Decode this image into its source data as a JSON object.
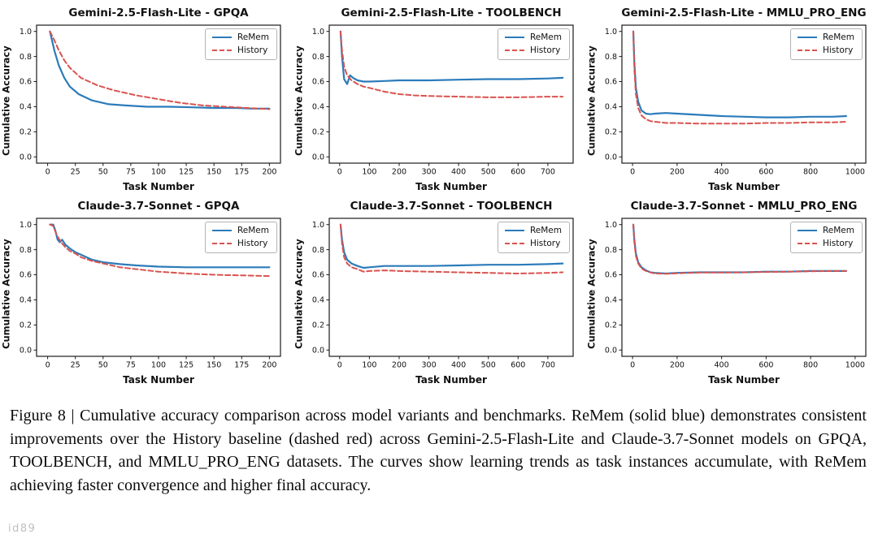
{
  "colors": {
    "remem": "#2b7bba",
    "history": "#d9534f"
  },
  "watermark": "id89",
  "caption": "Figure 8 | Cumulative accuracy comparison across model variants and benchmarks. ReMem (solid blue) demonstrates consistent improvements over the History baseline (dashed red) across Gemini-2.5-Flash-Lite and Claude-3.7-Sonnet models on GPQA, TOOLBENCH, and MMLU_PRO_ENG datasets. The curves show learning trends as task instances accumulate, with ReMem achieving faster convergence and higher final accuracy.",
  "chart_data": [
    {
      "type": "line",
      "title": "Gemini-2.5-Flash-Lite - GPQA",
      "xlabel": "Task Number",
      "ylabel": "Cumulative Accuracy",
      "xlim": [
        -10,
        210
      ],
      "ylim": [
        -0.05,
        1.05
      ],
      "xticks": [
        0,
        25,
        50,
        75,
        100,
        125,
        150,
        175,
        200
      ],
      "yticks": [
        0,
        0.2,
        0.4,
        0.6,
        0.8,
        1.0
      ],
      "grid": false,
      "legend_position": "upper right",
      "series": [
        {
          "name": "ReMem",
          "style": "solid",
          "x": [
            2,
            6,
            10,
            15,
            20,
            28,
            40,
            55,
            70,
            90,
            110,
            130,
            150,
            170,
            185,
            200
          ],
          "values": [
            1.0,
            0.85,
            0.73,
            0.63,
            0.56,
            0.5,
            0.45,
            0.42,
            0.41,
            0.4,
            0.4,
            0.395,
            0.39,
            0.39,
            0.385,
            0.385
          ]
        },
        {
          "name": "History",
          "style": "dashed",
          "x": [
            2,
            6,
            10,
            15,
            20,
            30,
            45,
            60,
            80,
            100,
            120,
            140,
            160,
            180,
            200
          ],
          "values": [
            1.0,
            0.93,
            0.85,
            0.77,
            0.71,
            0.63,
            0.57,
            0.53,
            0.49,
            0.46,
            0.43,
            0.41,
            0.4,
            0.39,
            0.38
          ]
        }
      ]
    },
    {
      "type": "line",
      "title": "Gemini-2.5-Flash-Lite - TOOLBENCH",
      "xlabel": "Task Number",
      "ylabel": "Cumulative Accuracy",
      "xlim": [
        -35,
        785
      ],
      "ylim": [
        -0.05,
        1.05
      ],
      "xticks": [
        0,
        100,
        200,
        300,
        400,
        500,
        600,
        700
      ],
      "yticks": [
        0,
        0.2,
        0.4,
        0.6,
        0.8,
        1.0
      ],
      "grid": false,
      "legend_position": "upper right",
      "series": [
        {
          "name": "ReMem",
          "style": "solid",
          "x": [
            3,
            8,
            15,
            25,
            35,
            45,
            60,
            80,
            100,
            150,
            200,
            300,
            400,
            500,
            600,
            700,
            750
          ],
          "values": [
            1.0,
            0.8,
            0.62,
            0.58,
            0.65,
            0.63,
            0.61,
            0.6,
            0.6,
            0.605,
            0.61,
            0.61,
            0.615,
            0.62,
            0.62,
            0.625,
            0.63
          ]
        },
        {
          "name": "History",
          "style": "dashed",
          "x": [
            3,
            8,
            15,
            25,
            40,
            60,
            80,
            100,
            150,
            200,
            250,
            300,
            400,
            500,
            600,
            700,
            750
          ],
          "values": [
            1.0,
            0.85,
            0.72,
            0.65,
            0.61,
            0.58,
            0.56,
            0.55,
            0.52,
            0.5,
            0.49,
            0.485,
            0.48,
            0.475,
            0.475,
            0.48,
            0.48
          ]
        }
      ]
    },
    {
      "type": "line",
      "title": "Gemini-2.5-Flash-Lite - MMLU_PRO_ENG",
      "xlabel": "Task Number",
      "ylabel": "Cumulative Accuracy",
      "xlim": [
        -48,
        1048
      ],
      "ylim": [
        -0.05,
        1.05
      ],
      "xticks": [
        0,
        200,
        400,
        600,
        800,
        1000
      ],
      "yticks": [
        0,
        0.2,
        0.4,
        0.6,
        0.8,
        1.0
      ],
      "grid": false,
      "legend_position": "upper right",
      "series": [
        {
          "name": "ReMem",
          "style": "solid",
          "x": [
            3,
            8,
            15,
            25,
            40,
            60,
            80,
            100,
            150,
            200,
            300,
            400,
            500,
            600,
            700,
            800,
            900,
            960
          ],
          "values": [
            1.0,
            0.75,
            0.55,
            0.44,
            0.37,
            0.345,
            0.34,
            0.345,
            0.35,
            0.345,
            0.335,
            0.325,
            0.32,
            0.315,
            0.315,
            0.32,
            0.32,
            0.325
          ]
        },
        {
          "name": "History",
          "style": "dashed",
          "x": [
            3,
            8,
            15,
            25,
            40,
            60,
            80,
            100,
            150,
            200,
            300,
            400,
            500,
            600,
            700,
            800,
            900,
            960
          ],
          "values": [
            1.0,
            0.7,
            0.5,
            0.39,
            0.33,
            0.3,
            0.285,
            0.28,
            0.27,
            0.27,
            0.265,
            0.265,
            0.265,
            0.27,
            0.27,
            0.275,
            0.275,
            0.28
          ]
        }
      ]
    },
    {
      "type": "line",
      "title": "Claude-3.7-Sonnet - GPQA",
      "xlabel": "Task Number",
      "ylabel": "Cumulative Accuracy",
      "xlim": [
        -10,
        210
      ],
      "ylim": [
        -0.05,
        1.05
      ],
      "xticks": [
        0,
        25,
        50,
        75,
        100,
        125,
        150,
        175,
        200
      ],
      "yticks": [
        0,
        0.2,
        0.4,
        0.6,
        0.8,
        1.0
      ],
      "grid": false,
      "legend_position": "upper right",
      "series": [
        {
          "name": "ReMem",
          "style": "solid",
          "x": [
            2,
            5,
            7,
            9,
            11,
            13,
            16,
            20,
            25,
            30,
            40,
            50,
            65,
            80,
            100,
            125,
            150,
            175,
            200
          ],
          "values": [
            1.0,
            1.0,
            0.95,
            0.88,
            0.86,
            0.88,
            0.84,
            0.81,
            0.78,
            0.76,
            0.72,
            0.7,
            0.685,
            0.675,
            0.665,
            0.66,
            0.66,
            0.66,
            0.66
          ]
        },
        {
          "name": "History",
          "style": "dashed",
          "x": [
            2,
            5,
            8,
            12,
            16,
            20,
            25,
            30,
            40,
            50,
            65,
            80,
            100,
            125,
            150,
            175,
            200
          ],
          "values": [
            1.0,
            0.99,
            0.92,
            0.86,
            0.82,
            0.79,
            0.77,
            0.74,
            0.71,
            0.69,
            0.66,
            0.645,
            0.625,
            0.61,
            0.6,
            0.595,
            0.59
          ]
        }
      ]
    },
    {
      "type": "line",
      "title": "Claude-3.7-Sonnet - TOOLBENCH",
      "xlabel": "Task Number",
      "ylabel": "Cumulative Accuracy",
      "xlim": [
        -35,
        785
      ],
      "ylim": [
        -0.05,
        1.05
      ],
      "xticks": [
        0,
        100,
        200,
        300,
        400,
        500,
        600,
        700
      ],
      "yticks": [
        0,
        0.2,
        0.4,
        0.6,
        0.8,
        1.0
      ],
      "grid": false,
      "legend_position": "upper right",
      "series": [
        {
          "name": "ReMem",
          "style": "solid",
          "x": [
            3,
            8,
            15,
            25,
            40,
            60,
            80,
            100,
            150,
            200,
            300,
            400,
            500,
            600,
            700,
            750
          ],
          "values": [
            1.0,
            0.88,
            0.78,
            0.72,
            0.69,
            0.67,
            0.655,
            0.66,
            0.67,
            0.67,
            0.67,
            0.675,
            0.68,
            0.68,
            0.685,
            0.69
          ]
        },
        {
          "name": "History",
          "style": "dashed",
          "x": [
            3,
            8,
            15,
            25,
            40,
            60,
            80,
            100,
            150,
            200,
            300,
            400,
            500,
            600,
            700,
            750
          ],
          "values": [
            1.0,
            0.85,
            0.74,
            0.69,
            0.66,
            0.645,
            0.625,
            0.63,
            0.635,
            0.63,
            0.625,
            0.62,
            0.615,
            0.61,
            0.615,
            0.62
          ]
        }
      ]
    },
    {
      "type": "line",
      "title": "Claude-3.7-Sonnet - MMLU_PRO_ENG",
      "xlabel": "Task Number",
      "ylabel": "Cumulative Accuracy",
      "xlim": [
        -48,
        1048
      ],
      "ylim": [
        -0.05,
        1.05
      ],
      "xticks": [
        0,
        200,
        400,
        600,
        800,
        1000
      ],
      "yticks": [
        0,
        0.2,
        0.4,
        0.6,
        0.8,
        1.0
      ],
      "grid": false,
      "legend_position": "upper right",
      "series": [
        {
          "name": "ReMem",
          "style": "solid",
          "x": [
            3,
            8,
            15,
            25,
            40,
            60,
            80,
            100,
            150,
            200,
            300,
            400,
            500,
            600,
            700,
            800,
            900,
            960
          ],
          "values": [
            1.0,
            0.88,
            0.77,
            0.7,
            0.66,
            0.635,
            0.62,
            0.615,
            0.61,
            0.615,
            0.62,
            0.62,
            0.62,
            0.625,
            0.625,
            0.63,
            0.63,
            0.63
          ]
        },
        {
          "name": "History",
          "style": "dashed",
          "x": [
            3,
            8,
            15,
            25,
            40,
            60,
            80,
            100,
            150,
            200,
            300,
            400,
            500,
            600,
            700,
            800,
            900,
            960
          ],
          "values": [
            1.0,
            0.86,
            0.75,
            0.69,
            0.65,
            0.63,
            0.62,
            0.61,
            0.608,
            0.612,
            0.618,
            0.618,
            0.62,
            0.622,
            0.624,
            0.628,
            0.63,
            0.63
          ]
        }
      ]
    }
  ]
}
